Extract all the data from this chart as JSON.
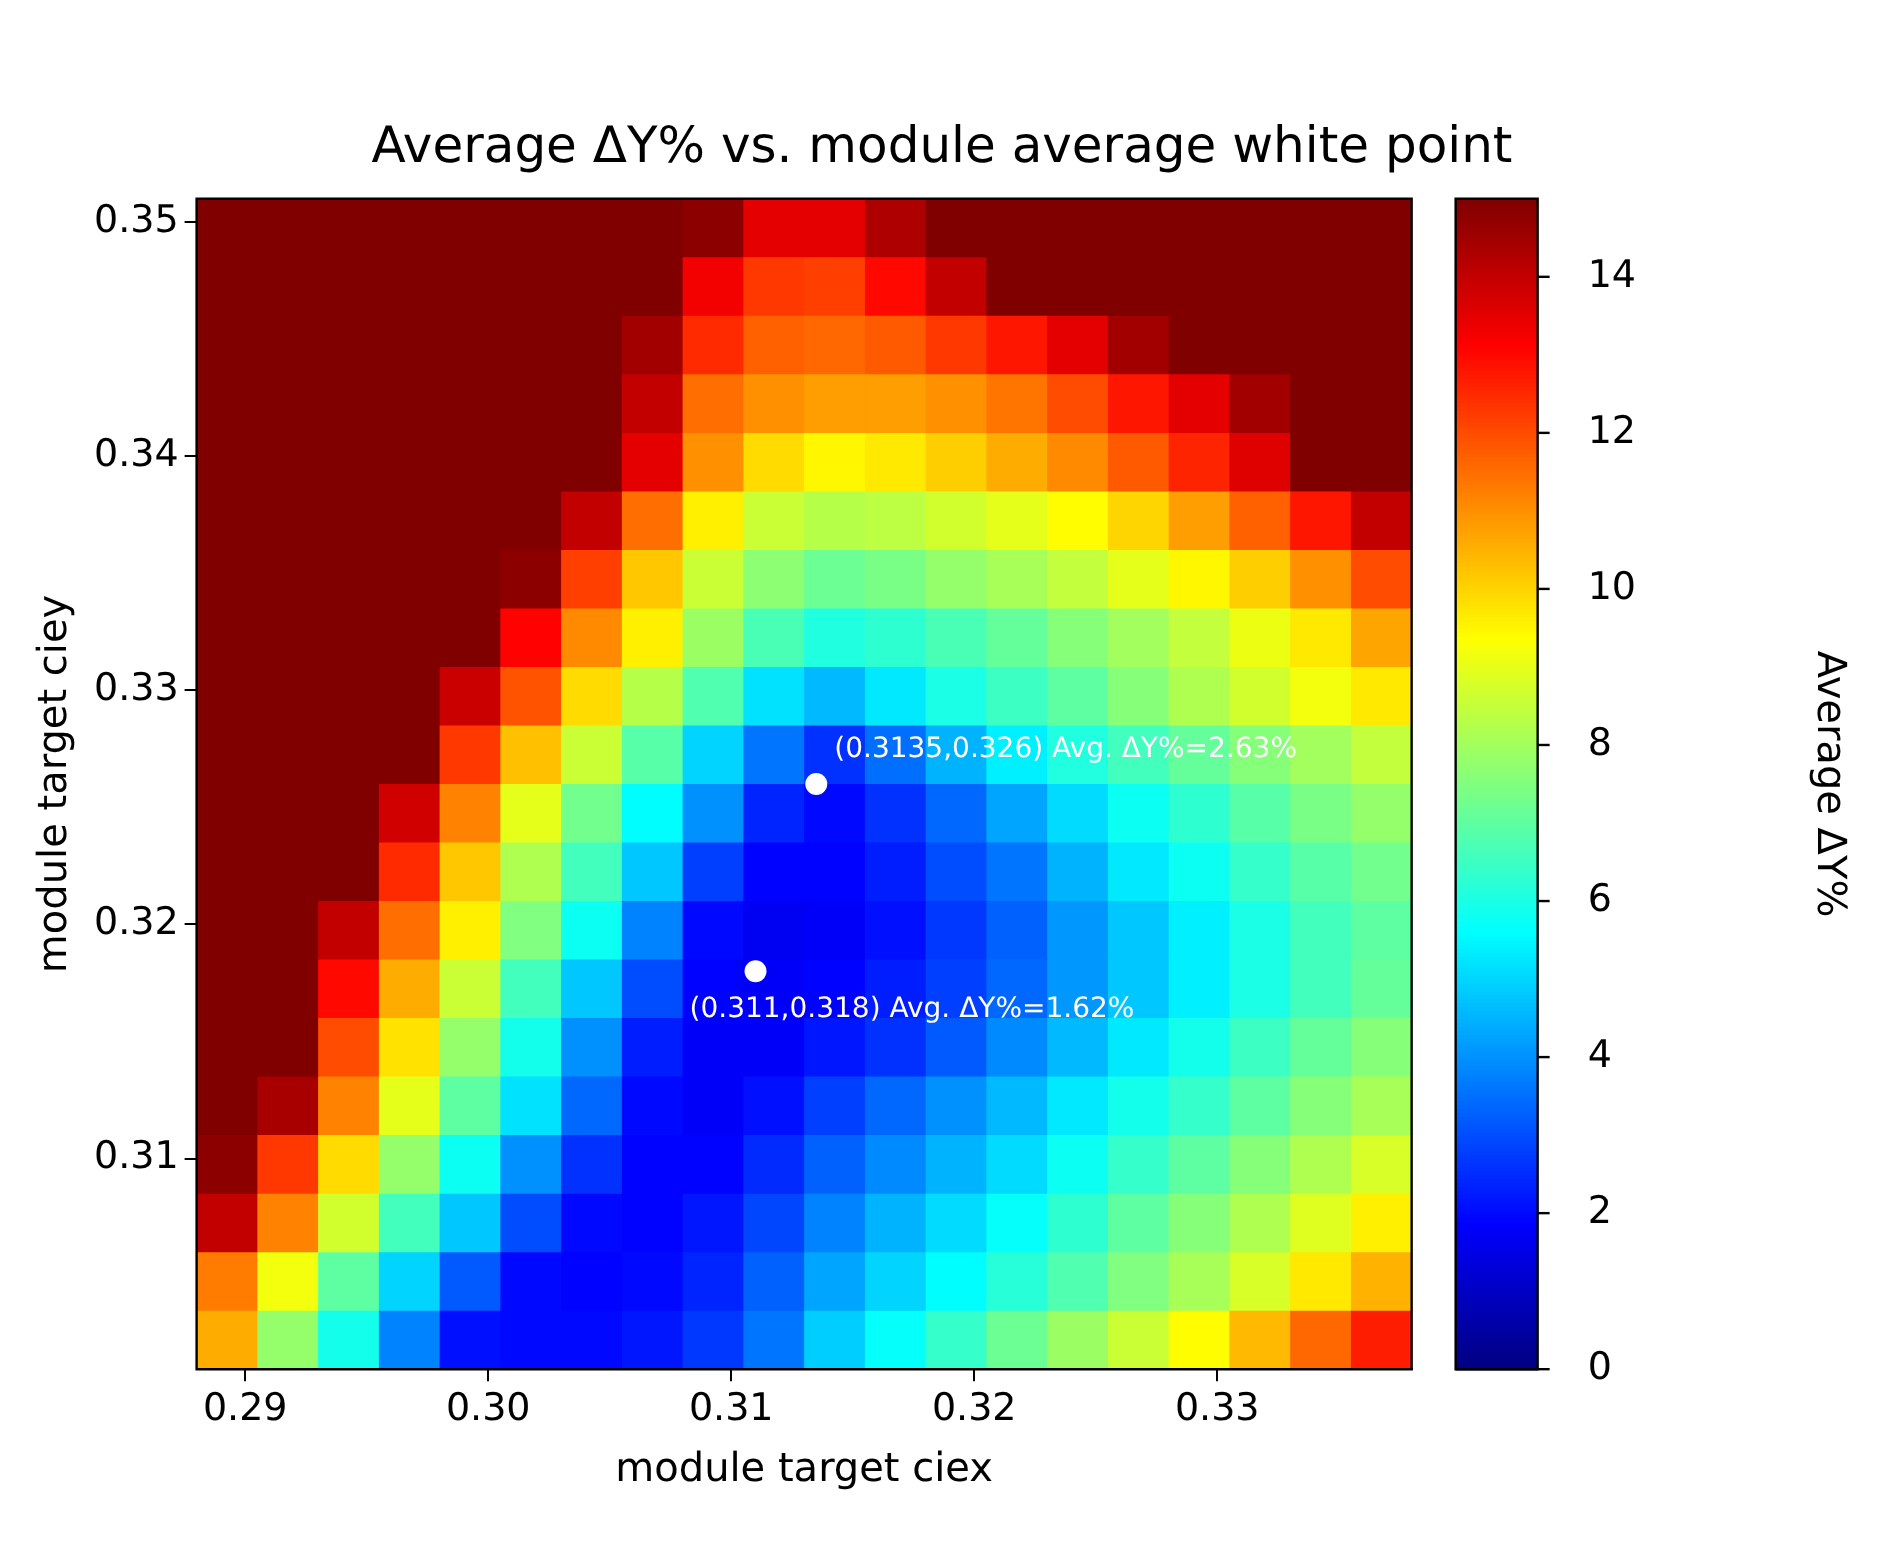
{
  "chart_data": {
    "type": "heatmap",
    "title": "Average ΔY% vs. module average white point",
    "xlabel": "module target ciex",
    "ylabel": "module target ciey",
    "clabel": "Average ΔY%",
    "x": [
      0.28925,
      0.29175,
      0.29425,
      0.29675,
      0.29925,
      0.30175,
      0.30425,
      0.30675,
      0.30925,
      0.31175,
      0.31425,
      0.31675,
      0.31925,
      0.32175,
      0.32425,
      0.32675,
      0.32925,
      0.33175,
      0.33425,
      0.33675
    ],
    "y": [
      0.34975,
      0.34725,
      0.34475,
      0.34225,
      0.33975,
      0.33725,
      0.33475,
      0.33225,
      0.32975,
      0.32725,
      0.32475,
      0.32225,
      0.31975,
      0.31725,
      0.31475,
      0.31225,
      0.30975,
      0.30725,
      0.30475,
      0.30225
    ],
    "xlim": [
      0.288,
      0.338
    ],
    "xticks": [
      {
        "value": 0.29,
        "label": "0.29"
      },
      {
        "value": 0.3,
        "label": "0.30"
      },
      0.31,
      0.32,
      0.33
    ],
    "ylim": [
      0.301,
      0.351
    ],
    "yticks": [
      0.31,
      0.32,
      0.33,
      0.34,
      0.35
    ],
    "clim": [
      0,
      15
    ],
    "cticks": [
      0,
      2,
      4,
      6,
      8,
      10,
      12,
      14
    ],
    "cells": [
      [
        15,
        15,
        15,
        15,
        15,
        15,
        15,
        15,
        14.8,
        13.5,
        13.5,
        14.3,
        15,
        15,
        15,
        15,
        15,
        15,
        15,
        15
      ],
      [
        15,
        15,
        15,
        15,
        15,
        15,
        15,
        15,
        13.3,
        12.3,
        12.2,
        13,
        14,
        15,
        15,
        15,
        15,
        15,
        15,
        15
      ],
      [
        15,
        15,
        15,
        15,
        15,
        15,
        15,
        14.5,
        12.5,
        11.7,
        11.6,
        11.8,
        12.3,
        12.8,
        13.5,
        14.5,
        15,
        15,
        15,
        15
      ],
      [
        15,
        15,
        15,
        15,
        15,
        15,
        15,
        14,
        11.5,
        11,
        10.8,
        10.8,
        11,
        11.4,
        12,
        12.8,
        13.5,
        14.5,
        15,
        15
      ],
      [
        15,
        15,
        15,
        15,
        15,
        15,
        15,
        13.5,
        11,
        9.9,
        9.5,
        9.7,
        10.1,
        10.6,
        11.1,
        11.8,
        12.6,
        13.6,
        15,
        15
      ],
      [
        15,
        15,
        15,
        15,
        15,
        15,
        14,
        11.5,
        9.6,
        8.6,
        8.3,
        8.4,
        8.7,
        9,
        9.4,
        10,
        10.8,
        11.7,
        12.8,
        14
      ],
      [
        15,
        15,
        15,
        15,
        15,
        14.8,
        12.2,
        10.2,
        8.6,
        7.7,
        7.2,
        7.4,
        7.8,
        8.1,
        8.5,
        9,
        9.5,
        10.1,
        11,
        12
      ],
      [
        15,
        15,
        15,
        15,
        15,
        13.1,
        11.1,
        9.6,
        7.9,
        6.7,
        6.1,
        6.3,
        6.7,
        7.1,
        7.6,
        8,
        8.5,
        9.1,
        9.7,
        10.7
      ],
      [
        15,
        15,
        15,
        15,
        13.9,
        11.9,
        9.9,
        8.3,
        6.8,
        5.2,
        4.6,
        5.3,
        6,
        6.5,
        7,
        7.6,
        8.2,
        8.7,
        9.2,
        9.7
      ],
      [
        15,
        15,
        15,
        15,
        12.3,
        10.3,
        8.6,
        6.9,
        5,
        3.6,
        2.6,
        3.5,
        4.5,
        5.4,
        6.1,
        6.6,
        7.1,
        7.6,
        8,
        8.5
      ],
      [
        15,
        15,
        15,
        13.8,
        11.2,
        9,
        7.3,
        5.6,
        4,
        2.4,
        2,
        2.6,
        3.4,
        4.3,
        5.1,
        5.8,
        6.3,
        6.9,
        7.4,
        7.8
      ],
      [
        15,
        15,
        15,
        12.5,
        10.2,
        8.2,
        6.6,
        4.8,
        2.8,
        1.9,
        1.9,
        2.3,
        3,
        3.6,
        4.5,
        5.3,
        5.8,
        6.4,
        6.9,
        7.3
      ],
      [
        15,
        15,
        14,
        11.5,
        9.6,
        7.5,
        5.8,
        3.8,
        2,
        1.7,
        1.8,
        2.1,
        2.7,
        3.3,
        4.1,
        4.8,
        5.4,
        6,
        6.6,
        7
      ],
      [
        15,
        15,
        13,
        10.6,
        8.6,
        6.6,
        4.8,
        3,
        1.9,
        1.8,
        1.9,
        2.3,
        2.8,
        3.4,
        4.1,
        4.8,
        5.4,
        6,
        6.6,
        7.1
      ],
      [
        15,
        15,
        12,
        9.8,
        7.8,
        5.9,
        4,
        2.3,
        1.8,
        1.8,
        2.2,
        2.6,
        3.2,
        3.9,
        4.6,
        5.3,
        5.9,
        6.5,
        7.1,
        7.6
      ],
      [
        15,
        14.4,
        11.2,
        9,
        7,
        5.2,
        3.4,
        2,
        1.8,
        2.1,
        2.8,
        3.4,
        4,
        4.6,
        5.3,
        5.9,
        6.4,
        7,
        7.6,
        8.1
      ],
      [
        14.8,
        12.3,
        9.9,
        7.8,
        5.8,
        4,
        2.6,
        1.9,
        1.9,
        2.5,
        3.3,
        3.9,
        4.5,
        5.1,
        5.8,
        6.4,
        7,
        7.6,
        8.2,
        8.8
      ],
      [
        14,
        11.2,
        8.7,
        6.6,
        4.8,
        3,
        2,
        1.9,
        2.2,
        2.9,
        3.8,
        4.5,
        5.1,
        5.7,
        6.3,
        7,
        7.6,
        8.2,
        8.9,
        9.6
      ],
      [
        11.3,
        9.2,
        7,
        5,
        3.2,
        2,
        1.9,
        2,
        2.4,
        3.3,
        4.3,
        5,
        5.6,
        6.2,
        6.8,
        7.5,
        8.1,
        8.8,
        9.7,
        10.5
      ],
      [
        10.6,
        7.8,
        5.9,
        3.8,
        2.1,
        2,
        2,
        2.2,
        2.7,
        3.6,
        4.9,
        5.7,
        6.4,
        7.2,
        7.9,
        8.6,
        9.4,
        10.4,
        11.6,
        12.7
      ]
    ],
    "series": [
      {
        "type": "scatter",
        "color": "#ffffff",
        "x": [
          0.3135,
          0.311
        ],
        "values": [
          0.326,
          0.318
        ]
      }
    ],
    "marker": "circle",
    "annotations": [
      {
        "text": "(0.3135,0.326) Avg. ΔY%=2.63%",
        "x": 0.3135,
        "y": 0.326
      },
      {
        "text": "(0.311,0.318) Avg. ΔY%=1.62%",
        "x": 0.311,
        "y": 0.318
      }
    ]
  }
}
